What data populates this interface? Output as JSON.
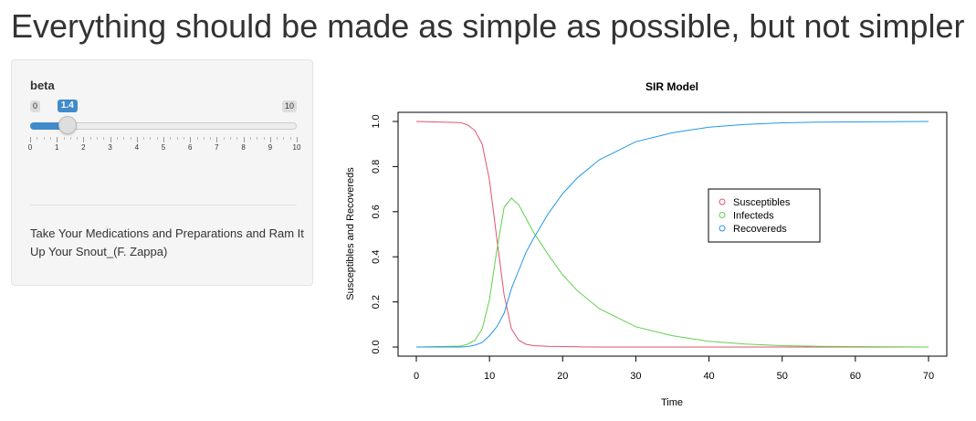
{
  "page": {
    "title": "Everything should be made as simple as possible, but not simpler"
  },
  "sidebar": {
    "slider": {
      "label": "beta",
      "min": 0,
      "max": 10,
      "value": 1.4,
      "min_text": "0",
      "max_text": "10",
      "value_text": "1.4",
      "grid_labels": [
        "0",
        "1",
        "2",
        "3",
        "4",
        "5",
        "6",
        "7",
        "8",
        "9",
        "10"
      ],
      "accent_color": "#428bca"
    },
    "quote": "Take Your Medications and Preparations and Ram It Up Your Snout_(F. Zappa)"
  },
  "chart_data": {
    "type": "line",
    "title": "SIR Model",
    "xlabel": "Time",
    "ylabel": "Susceptibles and Recovereds",
    "xlim": [
      0,
      70
    ],
    "ylim": [
      0,
      1
    ],
    "xticks": [
      "0",
      "10",
      "20",
      "30",
      "40",
      "50",
      "60",
      "70"
    ],
    "yticks": [
      "0.0",
      "0.2",
      "0.4",
      "0.6",
      "0.8",
      "1.0"
    ],
    "legend_position": "center-right",
    "x": [
      0,
      6,
      7,
      8,
      9,
      10,
      11,
      12,
      13,
      14,
      15,
      16,
      18,
      20,
      22,
      25,
      30,
      35,
      40,
      45,
      50,
      55,
      60,
      65,
      70
    ],
    "series": [
      {
        "name": "Susceptibles",
        "color": "#df536b",
        "values": [
          1.0,
          0.995,
          0.985,
          0.96,
          0.9,
          0.74,
          0.48,
          0.23,
          0.08,
          0.03,
          0.012,
          0.006,
          0.003,
          0.002,
          0.001,
          0.0,
          0.0,
          0.0,
          0.0,
          0.0,
          0.0,
          0.0,
          0.0,
          0.0,
          0.0
        ]
      },
      {
        "name": "Infecteds",
        "color": "#61d04f",
        "values": [
          0.0,
          0.004,
          0.012,
          0.03,
          0.08,
          0.21,
          0.43,
          0.62,
          0.66,
          0.63,
          0.57,
          0.51,
          0.41,
          0.32,
          0.25,
          0.17,
          0.09,
          0.05,
          0.025,
          0.013,
          0.006,
          0.003,
          0.002,
          0.001,
          0.0
        ]
      },
      {
        "name": "Recovereds",
        "color": "#2297e6",
        "values": [
          0.0,
          0.0,
          0.002,
          0.008,
          0.02,
          0.05,
          0.09,
          0.15,
          0.26,
          0.34,
          0.42,
          0.48,
          0.59,
          0.68,
          0.75,
          0.83,
          0.91,
          0.95,
          0.975,
          0.987,
          0.994,
          0.997,
          0.998,
          0.999,
          1.0
        ]
      }
    ]
  }
}
